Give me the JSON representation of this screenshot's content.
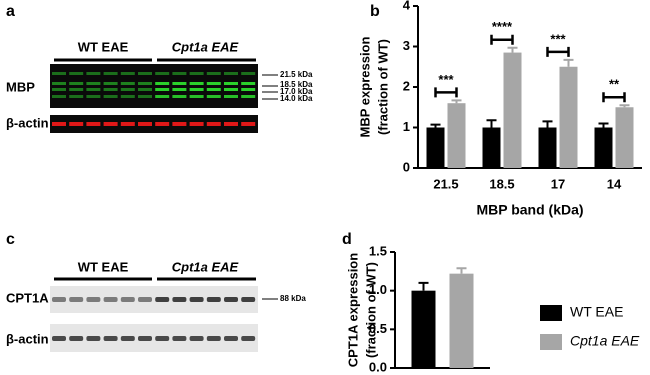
{
  "panel_labels": [
    "a",
    "b",
    "c",
    "d"
  ],
  "blot_a": {
    "groups": [
      "WT EAE",
      "Cpt1a EAE"
    ],
    "rows": [
      "MBP",
      "β-actin"
    ],
    "markers": [
      "21.5 kDa",
      "18.5 kDa",
      "17.0 kDa",
      "14.0 kDa"
    ]
  },
  "blot_c": {
    "groups": [
      "WT EAE",
      "Cpt1a EAE"
    ],
    "rows": [
      "CPT1A",
      "β-actin"
    ],
    "markers": [
      "88 kDa"
    ]
  },
  "chart_data": [
    {
      "type": "bar",
      "ylabel": [
        "MBP expression",
        "(fraction of WT)"
      ],
      "xlabel": "MBP band (kDa)",
      "categories": [
        "21.5",
        "18.5",
        "17",
        "14"
      ],
      "series": [
        {
          "name": "WT EAE",
          "color": "#000000",
          "values": [
            1.0,
            1.0,
            1.0,
            1.0
          ],
          "errors": [
            0.07,
            0.18,
            0.15,
            0.1
          ]
        },
        {
          "name": "Cpt1a EAE",
          "color": "#a6a6a6",
          "values": [
            1.6,
            2.85,
            2.5,
            1.5
          ],
          "errors": [
            0.07,
            0.12,
            0.17,
            0.05
          ]
        }
      ],
      "significance": [
        "***",
        "****",
        "***",
        "**"
      ],
      "ylim": [
        0,
        4
      ],
      "yticks": [
        0,
        1,
        2,
        3,
        4
      ]
    },
    {
      "type": "bar",
      "ylabel": [
        "CPT1A expression",
        "(fraction of WT)"
      ],
      "categories": [
        null
      ],
      "series": [
        {
          "name": "WT EAE",
          "color": "#000000",
          "values": [
            1.0
          ],
          "errors": [
            0.1
          ]
        },
        {
          "name": "Cpt1a EAE",
          "color": "#a6a6a6",
          "values": [
            1.22
          ],
          "errors": [
            0.07
          ]
        }
      ],
      "ylim": [
        0,
        1.5
      ],
      "yticks": [
        {
          "value": 0,
          "label": "0.0"
        },
        {
          "value": 0.5,
          "label": "0.5"
        },
        {
          "value": 1,
          "label": "1.0"
        },
        {
          "value": 1.5,
          "label": "1.5"
        }
      ],
      "legend": "bottom-right"
    }
  ]
}
